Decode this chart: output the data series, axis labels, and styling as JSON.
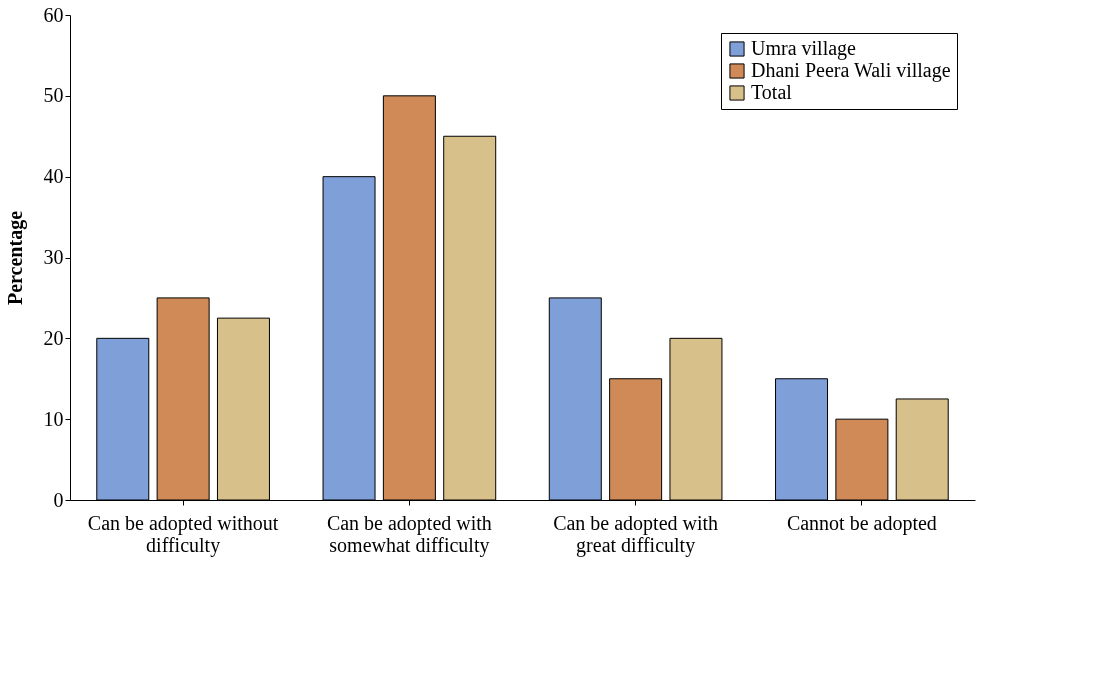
{
  "chart_data": {
    "type": "bar",
    "ylabel": "Percentage",
    "categories": [
      "Can be adopted without difficulty",
      "Can be adopted with somewhat difficulty",
      "Can be adopted with great difficulty",
      "Cannot  be adopted"
    ],
    "series": [
      {
        "name": "Umra village",
        "color": "#7f9fd8",
        "values": [
          20,
          40,
          25,
          15
        ]
      },
      {
        "name": "Dhani Peera Wali village",
        "color": "#d08a58",
        "values": [
          25,
          50,
          15,
          10
        ]
      },
      {
        "name": "Total",
        "color": "#d8c08a",
        "values": [
          22.5,
          45,
          20,
          12.5
        ]
      }
    ],
    "ylim": [
      0,
      60
    ],
    "yticks": [
      0,
      10,
      20,
      30,
      40,
      50,
      60
    ],
    "grid": false,
    "legend": "top right"
  }
}
